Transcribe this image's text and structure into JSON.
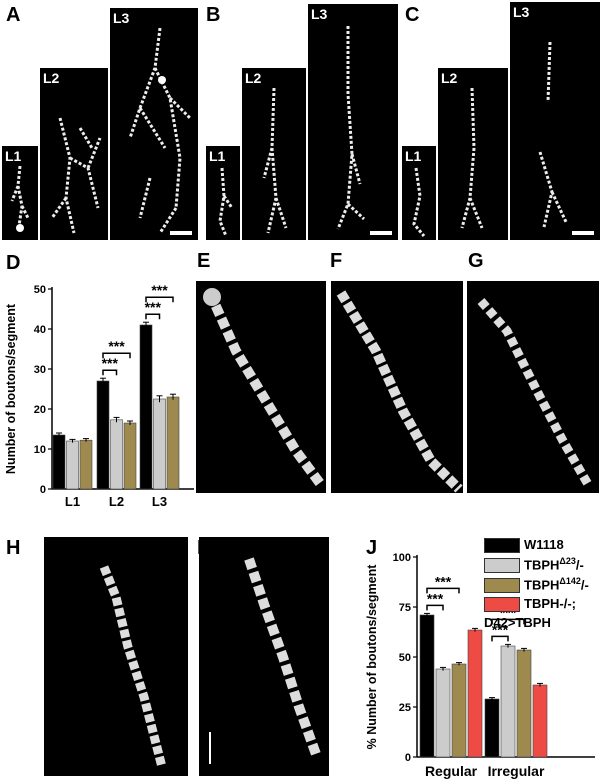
{
  "panels": {
    "A": "A",
    "B": "B",
    "C": "C",
    "D": "D",
    "E": "E",
    "F": "F",
    "G": "G",
    "H": "H",
    "I": "I",
    "J": "J"
  },
  "segments": {
    "l1": "L1",
    "l2": "L2",
    "l3": "L3"
  },
  "colors": {
    "w1118": "#000000",
    "tbph23": "#cccccc",
    "tbph142": "#9e8a4f",
    "rescue": "#ee4b45"
  },
  "legend": {
    "w1118": "W1118",
    "tbph23_base": "TBPH",
    "tbph23_sup": "Δ23",
    "tbph23_tail": "/-",
    "tbph142_base": "TBPH",
    "tbph142_sup": "Δ142",
    "tbph142_tail": "/-",
    "rescue_line1": "TBPH-/-;",
    "rescue_line2": "D42>TBPH"
  },
  "chart_data": [
    {
      "panel": "D",
      "type": "bar",
      "ylabel": "Number of boutons/segment",
      "ylim": [
        0,
        50
      ],
      "yticks": [
        0,
        10,
        20,
        30,
        40,
        50
      ],
      "categories": [
        "L1",
        "L2",
        "L3"
      ],
      "series": [
        {
          "name": "W1118",
          "values": [
            13.5,
            27,
            41
          ],
          "errors": [
            0.5,
            0.7,
            0.7
          ]
        },
        {
          "name": "TBPHΔ23/-",
          "values": [
            12,
            17.3,
            22.5
          ],
          "errors": [
            0.4,
            0.6,
            0.8
          ]
        },
        {
          "name": "TBPHΔ142/-",
          "values": [
            12.2,
            16.5,
            23
          ],
          "errors": [
            0.4,
            0.5,
            0.7
          ]
        }
      ],
      "significance": [
        {
          "category": "L2",
          "from": 0,
          "to": 1,
          "label": "***"
        },
        {
          "category": "L2",
          "from": 0,
          "to": 2,
          "label": "***"
        },
        {
          "category": "L3",
          "from": 0,
          "to": 1,
          "label": "***"
        },
        {
          "category": "L3",
          "from": 0,
          "to": 2,
          "label": "***"
        }
      ]
    },
    {
      "panel": "J",
      "type": "bar",
      "ylabel": "% Number of boutons/segment",
      "ylim": [
        0,
        100
      ],
      "yticks": [
        0,
        25,
        50,
        75,
        100
      ],
      "categories": [
        "Regular",
        "Irregular"
      ],
      "series": [
        {
          "name": "W1118",
          "values": [
            71,
            29
          ],
          "errors": [
            0.8,
            0.7
          ]
        },
        {
          "name": "TBPHΔ23/-",
          "values": [
            44,
            55.5
          ],
          "errors": [
            0.8,
            0.8
          ]
        },
        {
          "name": "TBPHΔ142/-",
          "values": [
            46.5,
            53.5
          ],
          "errors": [
            0.7,
            0.8
          ]
        },
        {
          "name": "TBPH-/-; D42>TBPH",
          "values": [
            63.5,
            36
          ],
          "errors": [
            0.8,
            0.8
          ]
        }
      ],
      "significance": [
        {
          "category": "Regular",
          "from": 0,
          "to": 1,
          "label": "***"
        },
        {
          "category": "Regular",
          "from": 0,
          "to": 2,
          "label": "***"
        },
        {
          "category": "Irregular",
          "from": 0,
          "to": 1,
          "label": "***"
        },
        {
          "category": "Irregular",
          "from": 0,
          "to": 2,
          "label": "***"
        }
      ]
    }
  ]
}
